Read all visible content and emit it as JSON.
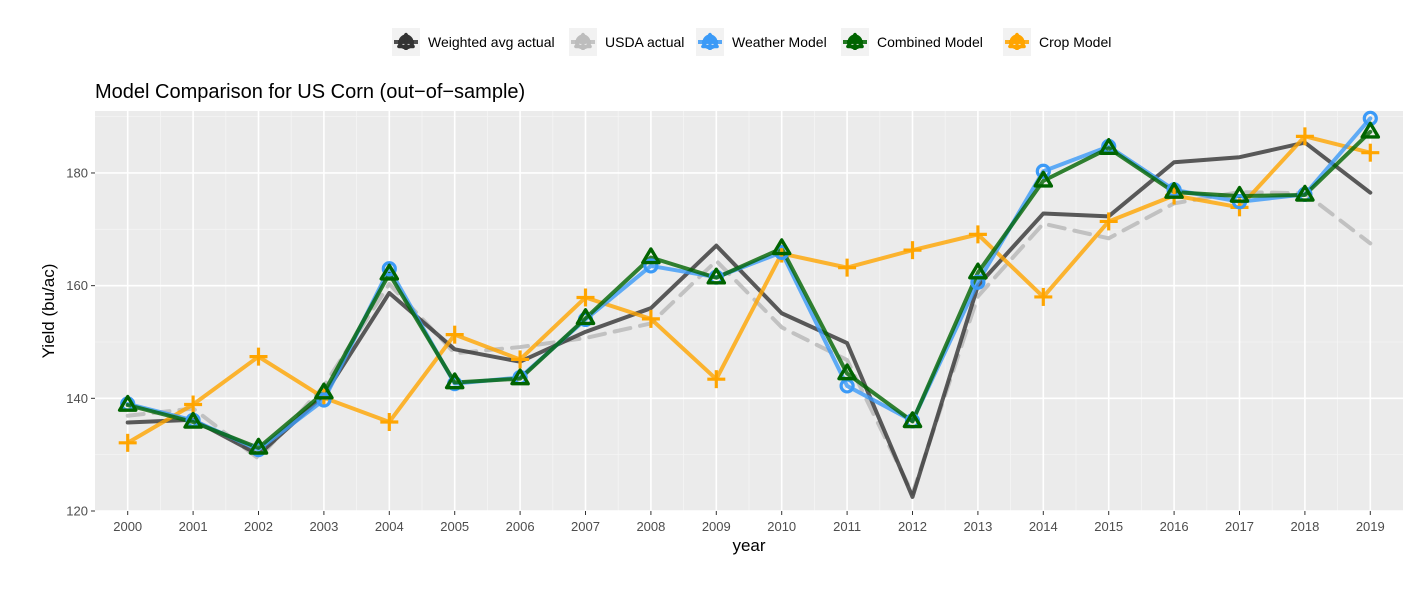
{
  "chart_data": {
    "type": "line",
    "title": "Model Comparison for US Corn (out−of−sample)",
    "xlabel": "year",
    "ylabel": "Yield (bu/ac)",
    "x": [
      2000,
      2001,
      2002,
      2003,
      2004,
      2005,
      2006,
      2007,
      2008,
      2009,
      2010,
      2011,
      2012,
      2013,
      2014,
      2015,
      2016,
      2017,
      2018,
      2019
    ],
    "xlim": [
      1999.5,
      2019.5
    ],
    "ylim": [
      120,
      191
    ],
    "yticks": [
      120,
      140,
      160,
      180
    ],
    "grid": true,
    "legend_position": "top",
    "legend_order": [
      "Weighted avg actual",
      "USDA actual",
      "Weather Model",
      "Combined Model",
      "Crop Model"
    ],
    "series": [
      {
        "name": "USDA actual",
        "color": "#bdbdbd",
        "style": "dashed",
        "marker": "none",
        "values": [
          136.9,
          138.2,
          129.3,
          142.2,
          160.3,
          148.0,
          149.1,
          150.7,
          153.3,
          164.4,
          152.6,
          146.8,
          123.1,
          158.1,
          171.0,
          168.4,
          174.6,
          176.6,
          176.4,
          167.5
        ]
      },
      {
        "name": "Weighted avg actual",
        "color": "#333333",
        "style": "solid",
        "marker": "none",
        "values": [
          135.7,
          136.2,
          130.0,
          140.5,
          158.7,
          148.7,
          146.5,
          151.8,
          156.0,
          167.1,
          155.1,
          149.8,
          122.5,
          160.0,
          172.8,
          172.3,
          181.9,
          182.8,
          185.4,
          176.5
        ]
      },
      {
        "name": "Crop Model",
        "color": "#ffa500",
        "style": "solid",
        "marker": "plus",
        "values": [
          132.1,
          138.9,
          147.4,
          140.1,
          135.8,
          151.3,
          146.9,
          157.9,
          154.1,
          143.4,
          165.7,
          163.2,
          166.3,
          169.1,
          158.0,
          171.4,
          176.0,
          173.9,
          186.5,
          183.6
        ]
      },
      {
        "name": "Weather Model",
        "color": "#3b9af7",
        "style": "solid",
        "marker": "circle",
        "values": [
          139.0,
          136.1,
          130.9,
          139.7,
          163.0,
          142.6,
          143.7,
          154.0,
          163.5,
          161.5,
          165.9,
          142.2,
          136.0,
          160.6,
          180.3,
          184.7,
          177.0,
          174.9,
          176.2,
          189.7
        ]
      },
      {
        "name": "Combined Model",
        "color": "#006400",
        "style": "solid",
        "marker": "triangle",
        "values": [
          138.8,
          135.8,
          131.2,
          141.0,
          162.1,
          142.8,
          143.5,
          154.2,
          165.0,
          161.4,
          166.6,
          144.4,
          135.9,
          162.3,
          178.6,
          184.4,
          176.6,
          175.9,
          176.1,
          187.3
        ]
      }
    ]
  }
}
